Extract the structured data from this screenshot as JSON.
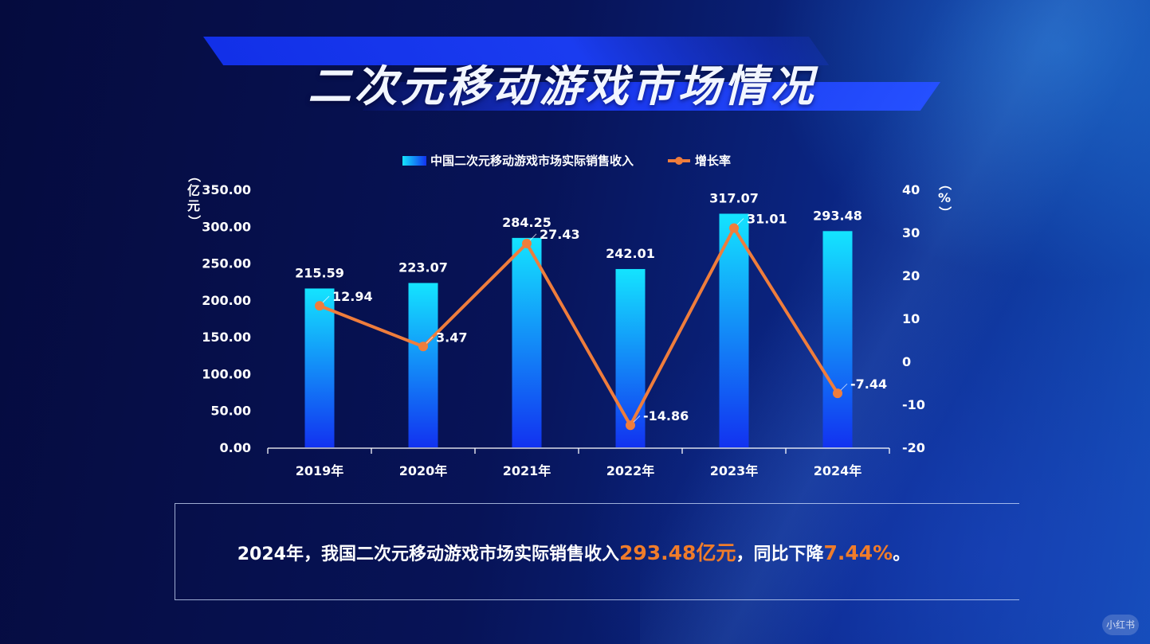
{
  "page": {
    "title": "二次元移动游戏市场情况",
    "watermark": "小红书"
  },
  "summary": {
    "prefix": "2024年，我国二次元移动游戏市场实际销售收入",
    "revenue_highlight": "293.48亿元",
    "middle": "，同比下降",
    "rate_highlight": "7.44%",
    "suffix": "。"
  },
  "colors": {
    "bar_top": "#14e4ff",
    "bar_bottom": "#1232f0",
    "line": "#ef7d3c",
    "highlight": "#f07c2a"
  },
  "chart_data": {
    "type": "bar",
    "categories": [
      "2019年",
      "2020年",
      "2021年",
      "2022年",
      "2023年",
      "2024年"
    ],
    "series": [
      {
        "name": "中国二次元移动游戏市场实际销售收入",
        "type": "bar",
        "axis": "left",
        "values": [
          215.59,
          223.07,
          284.25,
          242.01,
          317.07,
          293.48
        ],
        "labels": [
          "215.59",
          "223.07",
          "284.25",
          "242.01",
          "317.07",
          "293.48"
        ]
      },
      {
        "name": "增长率",
        "type": "line",
        "axis": "right",
        "values": [
          12.94,
          3.47,
          27.43,
          -14.86,
          31.01,
          -7.44
        ],
        "labels": [
          "12.94",
          "3.47",
          "27.43",
          "-14.86",
          "31.01",
          "-7.44"
        ]
      }
    ],
    "y_left": {
      "label": "（亿元）",
      "ylim": [
        0,
        350
      ],
      "ticks": [
        "0.00",
        "50.00",
        "100.00",
        "150.00",
        "200.00",
        "250.00",
        "300.00",
        "350.00"
      ]
    },
    "y_right": {
      "label": "（%）",
      "ylim": [
        -20,
        40
      ],
      "ticks": [
        "-20",
        "-10",
        "0",
        "10",
        "20",
        "30",
        "40"
      ]
    },
    "legend_position": "top-center",
    "grid": false
  }
}
